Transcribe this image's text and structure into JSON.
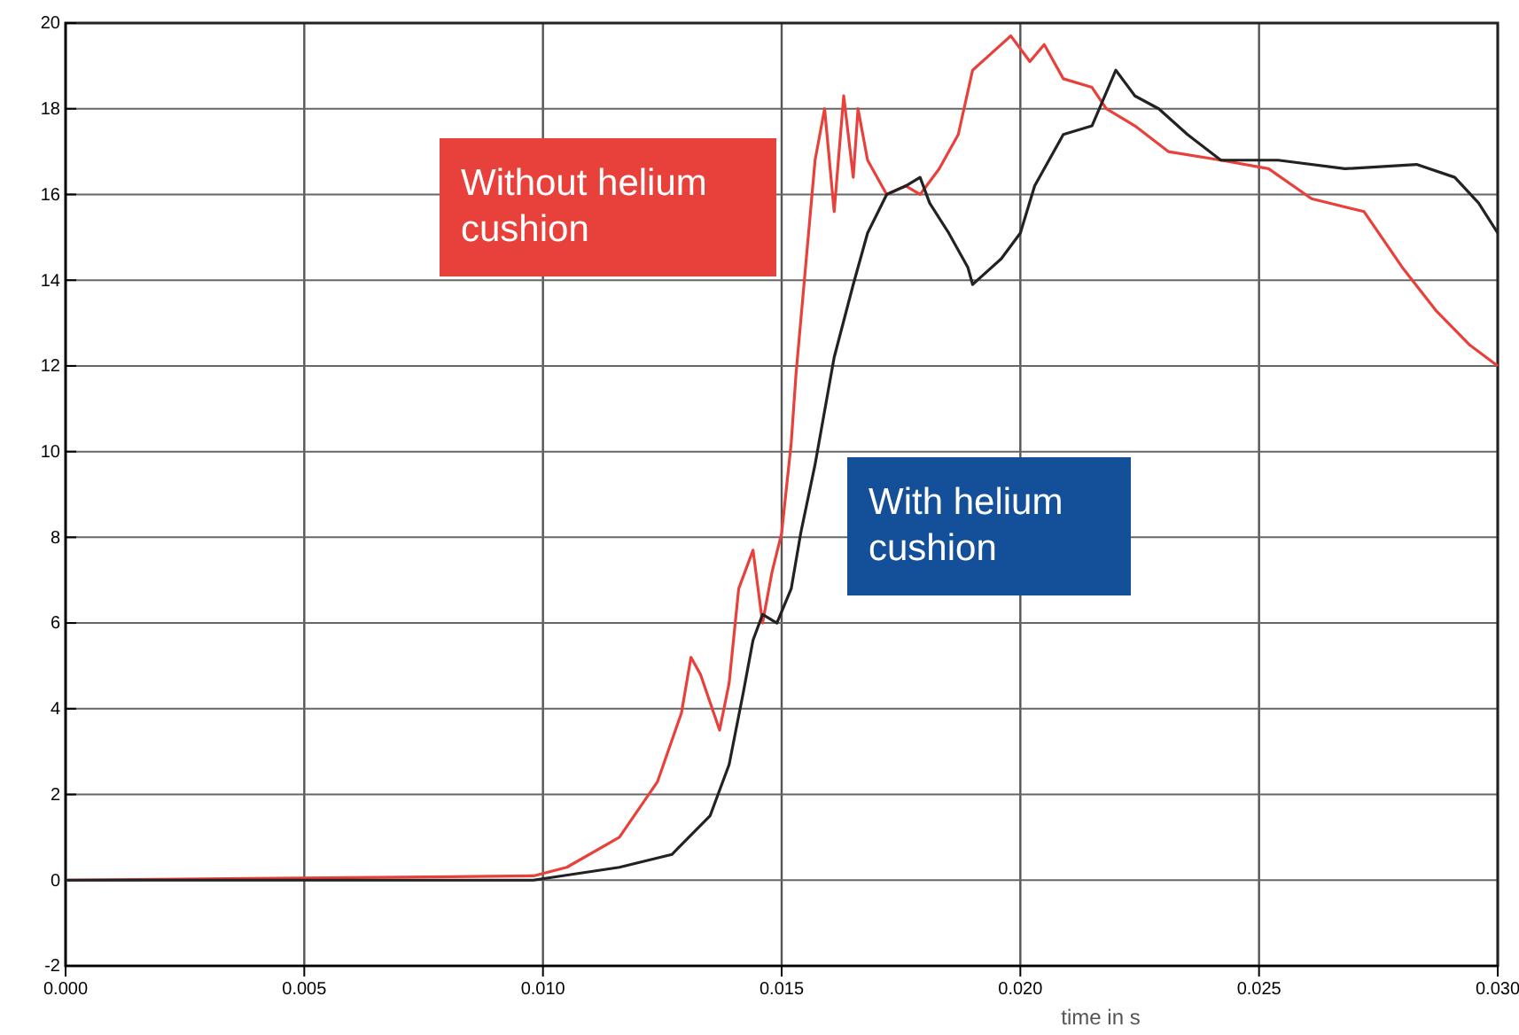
{
  "chart_data": {
    "type": "line",
    "xlabel": "time in s",
    "xlim": [
      0,
      0.03
    ],
    "xticks": [
      {
        "value": 0,
        "label": "0.000"
      },
      {
        "value": 0.005,
        "label": "0.005"
      },
      {
        "value": 0.01,
        "label": "0.010"
      },
      {
        "value": 0.015,
        "label": "0.015"
      },
      {
        "value": 0.02,
        "label": "0.020"
      },
      {
        "value": 0.025,
        "label": "0.025"
      },
      {
        "value": 0.03,
        "label": "0.030"
      }
    ],
    "ylim": [
      -2,
      20
    ],
    "yticks": [
      -2,
      0,
      2,
      4,
      6,
      8,
      10,
      12,
      14,
      16,
      18,
      20
    ],
    "grid": true,
    "legend": false,
    "line_style": "solid",
    "marker": "none",
    "series": [
      {
        "name": "Without helium cushion",
        "color": "#e8403a",
        "x": [
          0,
          0.0098,
          0.0105,
          0.0116,
          0.0124,
          0.0129,
          0.0131,
          0.0133,
          0.0137,
          0.0139,
          0.0141,
          0.0144,
          0.0146,
          0.0148,
          0.015,
          0.0152,
          0.0153,
          0.0155,
          0.0157,
          0.0159,
          0.0161,
          0.0163,
          0.0165,
          0.0166,
          0.0168,
          0.0172,
          0.0176,
          0.0179,
          0.0183,
          0.0187,
          0.019,
          0.0194,
          0.0198,
          0.0202,
          0.0205,
          0.0209,
          0.0215,
          0.0218,
          0.0224,
          0.0231,
          0.0242,
          0.0252,
          0.0261,
          0.0272,
          0.028,
          0.0287,
          0.0294,
          0.03
        ],
        "values": [
          0,
          0.1,
          0.3,
          1.0,
          2.3,
          3.9,
          5.2,
          4.8,
          3.5,
          4.6,
          6.8,
          7.7,
          6.0,
          7.2,
          8.1,
          10.2,
          11.8,
          14.3,
          16.8,
          18.0,
          15.6,
          18.3,
          16.4,
          18.0,
          16.8,
          16.0,
          16.2,
          16.0,
          16.6,
          17.4,
          18.9,
          19.3,
          19.7,
          19.1,
          19.5,
          18.7,
          18.5,
          18.0,
          17.6,
          17.0,
          16.8,
          16.6,
          15.9,
          15.6,
          14.3,
          13.3,
          12.5,
          12.0
        ]
      },
      {
        "name": "With helium cushion",
        "color": "#222222",
        "x": [
          0,
          0.0098,
          0.0116,
          0.0127,
          0.0135,
          0.0139,
          0.0142,
          0.0144,
          0.0146,
          0.0149,
          0.0152,
          0.0154,
          0.0157,
          0.0161,
          0.0165,
          0.0168,
          0.0172,
          0.0176,
          0.0179,
          0.0181,
          0.0185,
          0.0189,
          0.019,
          0.0192,
          0.0196,
          0.02,
          0.0203,
          0.0209,
          0.0215,
          0.022,
          0.0224,
          0.0229,
          0.0235,
          0.0242,
          0.0254,
          0.0268,
          0.0283,
          0.0291,
          0.0296,
          0.03
        ],
        "values": [
          0,
          0,
          0.3,
          0.6,
          1.5,
          2.7,
          4.4,
          5.6,
          6.2,
          6.0,
          6.8,
          8.1,
          9.7,
          12.2,
          13.9,
          15.1,
          16.0,
          16.2,
          16.4,
          15.8,
          15.1,
          14.3,
          13.9,
          14.1,
          14.5,
          15.1,
          16.2,
          17.4,
          17.6,
          18.9,
          18.3,
          18.0,
          17.4,
          16.8,
          16.8,
          16.6,
          16.7,
          16.4,
          15.8,
          15.1
        ]
      }
    ]
  }
}
